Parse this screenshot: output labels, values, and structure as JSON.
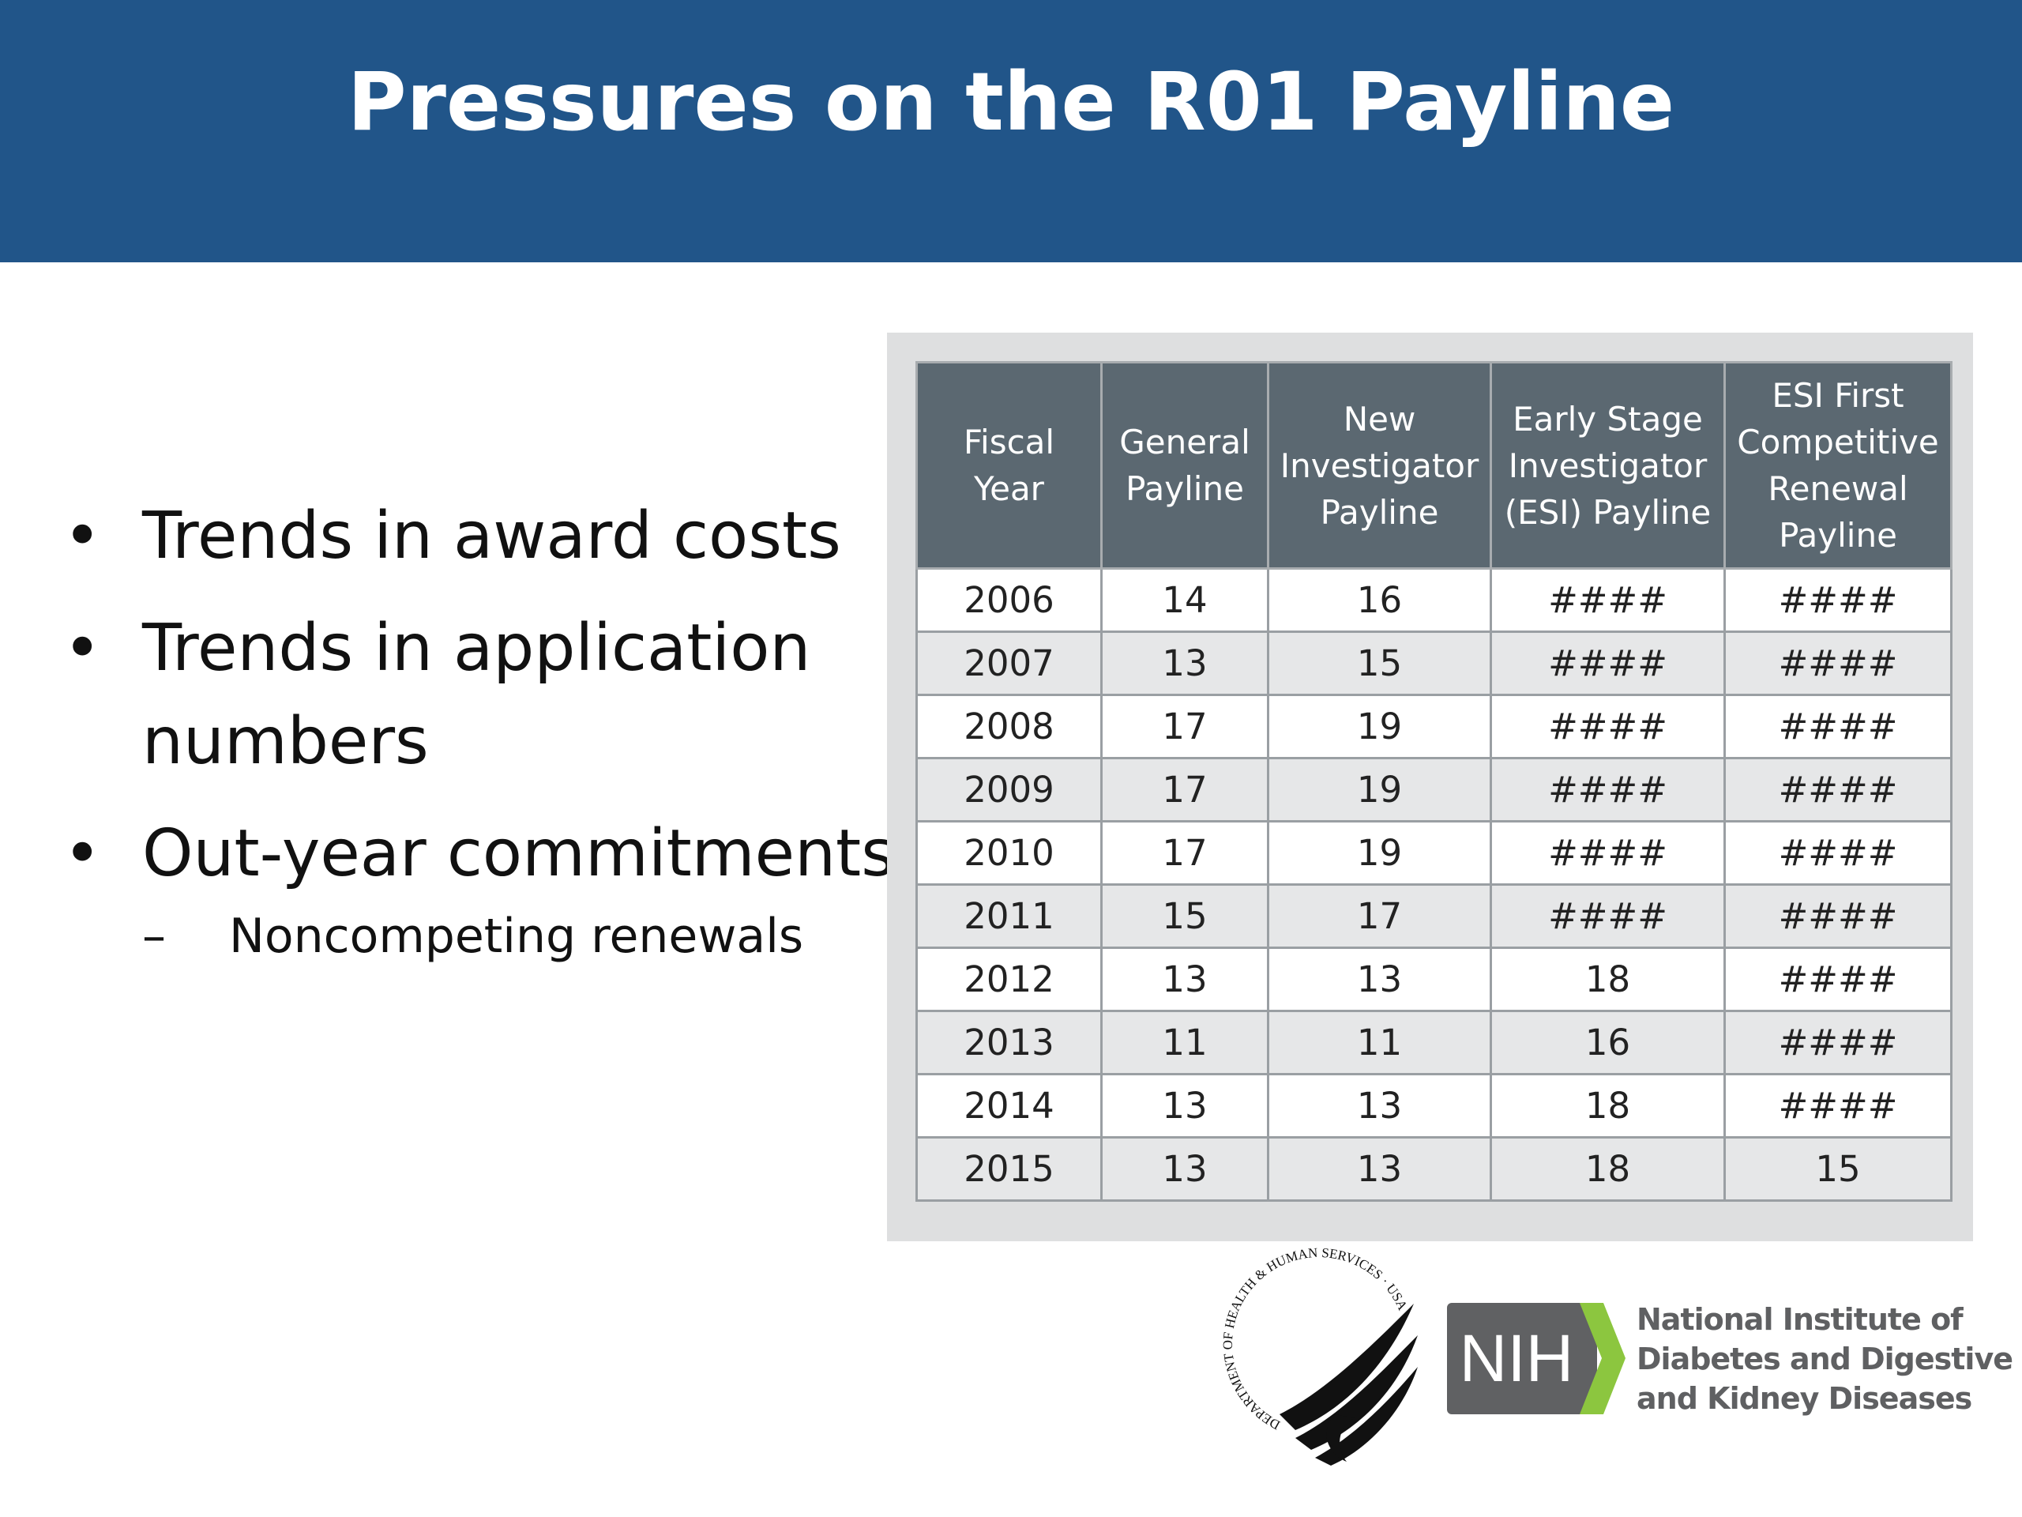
{
  "title": "Pressures on the R01 Payline",
  "bullets": [
    {
      "text": "Trends in award costs"
    },
    {
      "text": "Trends in application numbers"
    },
    {
      "text": "Out-year commitments",
      "sub": [
        "Noncompeting renewals"
      ]
    }
  ],
  "table": {
    "columns": [
      [
        "Fiscal",
        "Year"
      ],
      [
        "General",
        "Payline"
      ],
      [
        "New",
        "Investigator",
        "Payline"
      ],
      [
        "Early Stage",
        "Investigator",
        "(ESI) Payline"
      ],
      [
        "ESI First",
        "Competitive",
        "Renewal",
        "Payline"
      ]
    ],
    "rows": [
      [
        2006,
        14,
        16,
        "####",
        "####"
      ],
      [
        2007,
        13,
        15,
        "####",
        "####"
      ],
      [
        2008,
        17,
        19,
        "####",
        "####"
      ],
      [
        2009,
        17,
        19,
        "####",
        "####"
      ],
      [
        2010,
        17,
        19,
        "####",
        "####"
      ],
      [
        2011,
        15,
        17,
        "####",
        "####"
      ],
      [
        2012,
        13,
        13,
        18,
        "####"
      ],
      [
        2013,
        11,
        11,
        16,
        "####"
      ],
      [
        2014,
        13,
        13,
        18,
        "####"
      ],
      [
        2015,
        13,
        13,
        18,
        15
      ]
    ]
  },
  "logos": {
    "hhs_seal": "DEPARTMENT OF HEALTH & HUMAN SERVICES · USA",
    "nih": "NIH",
    "institute": [
      "National Institute of",
      "Diabetes and Digestive",
      "and Kidney Diseases"
    ]
  }
}
